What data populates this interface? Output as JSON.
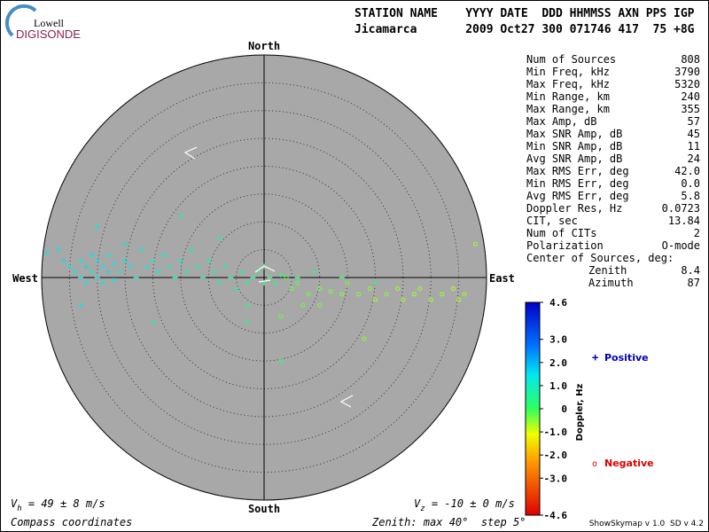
{
  "logo": {
    "small": "Lowell",
    "big": "DIGISONDE"
  },
  "header": {
    "labels": "STATION NAME    YYYY DATE  DDD HHMMSS AXN PPS IGP",
    "values": "Jicamarca       2009 Oct27 300 071746 417  75 +8G"
  },
  "directions": {
    "north": "North",
    "south": "South",
    "east": "East",
    "west": "West"
  },
  "stats": [
    [
      "Num of Sources",
      "808"
    ],
    [
      "Min Freq, kHz",
      "3790"
    ],
    [
      "Max Freq, kHz",
      "5320"
    ],
    [
      "Min Range, km",
      "240"
    ],
    [
      "Max Range, km",
      "355"
    ],
    [
      "Max Amp, dB",
      "57"
    ],
    [
      "Max SNR Amp, dB",
      "45"
    ],
    [
      "Min SNR Amp, dB",
      "11"
    ],
    [
      "Avg SNR Amp, dB",
      "24"
    ],
    [
      "Max RMS Err, deg",
      "42.0"
    ],
    [
      "Min RMS Err, deg",
      "0.0"
    ],
    [
      "Avg RMS Err, deg",
      "5.8"
    ],
    [
      "Doppler Res, Hz",
      "0.0723"
    ],
    [
      "CIT, sec",
      "13.84"
    ],
    [
      "Num of CITs",
      "2"
    ],
    [
      "Polarization",
      "O-mode"
    ]
  ],
  "center": {
    "title": "Center of Sources, deg:",
    "rows": [
      [
        "Zenith",
        "8.4"
      ],
      [
        "Azimuth",
        "87"
      ]
    ]
  },
  "chart_data": {
    "type": "scatter",
    "xlim": [
      -40,
      40
    ],
    "ylim": [
      -40,
      40
    ],
    "rings": [
      5,
      10,
      15,
      20,
      25,
      30,
      35,
      40
    ],
    "points": [
      [
        -39,
        4.5,
        1.5
      ],
      [
        -37,
        5,
        1.4
      ],
      [
        -36,
        3,
        1.6
      ],
      [
        -35,
        2,
        1.3
      ],
      [
        -34,
        1,
        1.5
      ],
      [
        -33,
        3,
        1.2
      ],
      [
        -33,
        0,
        1.4
      ],
      [
        -32,
        2,
        1.6
      ],
      [
        -32,
        -1,
        1.3
      ],
      [
        -31,
        4,
        1.5
      ],
      [
        -31,
        1,
        1.2
      ],
      [
        -30,
        3,
        1.4
      ],
      [
        -30,
        0,
        1.3
      ],
      [
        -29,
        2,
        1.5
      ],
      [
        -29,
        -1,
        1.4
      ],
      [
        -28,
        4,
        1.2
      ],
      [
        -28,
        1,
        1.6
      ],
      [
        -27,
        2.5,
        1.3
      ],
      [
        -27,
        -0.5,
        1.4
      ],
      [
        -26,
        1,
        1.2
      ],
      [
        -25,
        3,
        1.5
      ],
      [
        -25,
        6,
        1.3
      ],
      [
        -24,
        2,
        1.4
      ],
      [
        -23,
        0,
        1.1
      ],
      [
        -22,
        5,
        1.2
      ],
      [
        -21,
        2,
        1.3
      ],
      [
        -20,
        3,
        1.0
      ],
      [
        -19,
        1,
        1.2
      ],
      [
        -18,
        4,
        1.1
      ],
      [
        -17,
        2,
        0.9
      ],
      [
        -16,
        0,
        1.0
      ],
      [
        -15,
        3,
        1.1
      ],
      [
        -14,
        1,
        0.8
      ],
      [
        -13,
        5,
        1.0
      ],
      [
        -12,
        2,
        0.9
      ],
      [
        -11,
        0,
        0.7
      ],
      [
        -10,
        3,
        0.8
      ],
      [
        -9,
        1,
        0.7
      ],
      [
        -8,
        -1,
        0.6
      ],
      [
        -7,
        2,
        0.7
      ],
      [
        -6,
        0,
        0.5
      ],
      [
        -5,
        -2,
        0.6
      ],
      [
        -4,
        1,
        0.5
      ],
      [
        -3,
        -1,
        0.4
      ],
      [
        -2,
        0,
        0.5
      ],
      [
        -1,
        1,
        0.3
      ],
      [
        0,
        -1,
        0.4
      ],
      [
        0,
        2,
        0.3
      ],
      [
        1,
        0,
        0.2
      ],
      [
        2,
        -1,
        0.3
      ],
      [
        3,
        0.5,
        0.2
      ],
      [
        -33,
        -5,
        1.5
      ],
      [
        -20,
        -8,
        0.9
      ],
      [
        -30,
        9,
        1.4
      ],
      [
        -15,
        11,
        1.0
      ],
      [
        -8,
        7,
        0.6
      ],
      [
        -3,
        -8,
        0.3
      ],
      [
        -3,
        -5,
        0.4
      ],
      [
        6,
        0,
        0.2
      ],
      [
        9,
        1,
        0.3
      ],
      [
        14,
        0,
        0.1
      ],
      [
        20,
        -1,
        0.2
      ],
      [
        3,
        -15,
        0.3
      ],
      [
        4,
        0,
        -0.2
      ],
      [
        5,
        -2,
        -0.3
      ],
      [
        6,
        -1,
        -0.2
      ],
      [
        8,
        -3,
        -0.3
      ],
      [
        10,
        -2,
        -0.4
      ],
      [
        12,
        -2.5,
        -0.4
      ],
      [
        14,
        -3,
        -0.5
      ],
      [
        15,
        -1,
        -0.4
      ],
      [
        17,
        -3,
        -0.5
      ],
      [
        19,
        -2,
        -0.5
      ],
      [
        20,
        -4,
        -0.6
      ],
      [
        22,
        -3,
        -0.5
      ],
      [
        24,
        -2,
        -0.6
      ],
      [
        25,
        -4,
        -0.6
      ],
      [
        27,
        -3,
        -0.7
      ],
      [
        28,
        -2,
        -0.6
      ],
      [
        30,
        -4,
        -0.7
      ],
      [
        32,
        -3,
        -0.6
      ],
      [
        34,
        -2,
        -0.7
      ],
      [
        35,
        -4,
        -0.7
      ],
      [
        36,
        -3,
        -0.6
      ],
      [
        38,
        6,
        -0.7
      ],
      [
        18,
        -11,
        -0.5
      ],
      [
        3,
        -7,
        -0.3
      ],
      [
        7,
        -5,
        -0.3
      ],
      [
        10,
        -5,
        -0.4
      ]
    ]
  },
  "colorbar": {
    "label": "Doppler, Hz",
    "lim": [
      -4.6,
      4.6
    ],
    "ticks": [
      {
        "value": 4.6,
        "label": "4.6"
      },
      {
        "value": 3,
        "label": "3.0"
      },
      {
        "value": 2,
        "label": "2.0"
      },
      {
        "value": 1,
        "label": "1.0"
      },
      0,
      {
        "value": -1,
        "label": "-1.0"
      },
      {
        "value": -2,
        "label": "-2.0"
      },
      {
        "value": -3,
        "label": "-3.0"
      },
      {
        "value": -4.6,
        "label": "-4.6"
      }
    ]
  },
  "legend": {
    "positive_symbol": "+",
    "positive": "Positive",
    "negative_symbol": "o",
    "negative": "Negative"
  },
  "footer": {
    "vh_symbol": "V",
    "vh_sub": "h",
    "vh_text": " = 49 ± 8 m/s",
    "vz_symbol": "V",
    "vz_sub": "z",
    "vz_text": " = -10 ± 0 m/s",
    "coords": "Compass coordinates",
    "zenith": "Zenith: max 40°  step 5°",
    "version": "ShowSkymap v 1.0  SD v 4.2"
  }
}
